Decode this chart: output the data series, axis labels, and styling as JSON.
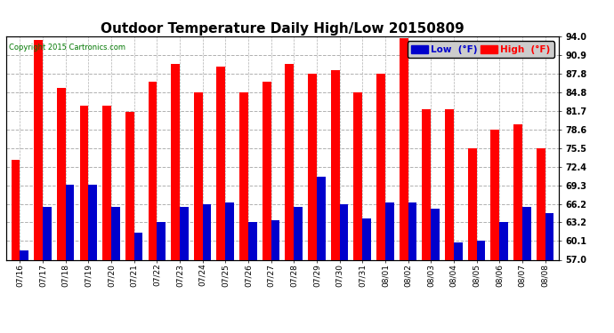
{
  "title": "Outdoor Temperature Daily High/Low 20150809",
  "copyright": "Copyright 2015 Cartronics.com",
  "yticks": [
    57.0,
    60.1,
    63.2,
    66.2,
    69.3,
    72.4,
    75.5,
    78.6,
    81.7,
    84.8,
    87.8,
    90.9,
    94.0
  ],
  "ylim": [
    57.0,
    94.0
  ],
  "dates": [
    "07/16",
    "07/17",
    "07/18",
    "07/19",
    "07/20",
    "07/21",
    "07/22",
    "07/23",
    "07/24",
    "07/25",
    "07/26",
    "07/27",
    "07/28",
    "07/29",
    "07/30",
    "07/31",
    "08/01",
    "08/02",
    "08/03",
    "08/04",
    "08/05",
    "08/06",
    "08/07",
    "08/08"
  ],
  "highs": [
    73.5,
    93.5,
    85.5,
    82.5,
    82.5,
    81.5,
    86.5,
    89.5,
    84.8,
    89.0,
    84.8,
    86.5,
    89.5,
    87.8,
    88.5,
    84.8,
    87.8,
    93.8,
    82.0,
    82.0,
    75.5,
    78.6,
    79.5,
    75.5
  ],
  "lows": [
    58.5,
    65.8,
    69.5,
    69.5,
    65.8,
    61.5,
    63.2,
    65.8,
    66.2,
    66.5,
    63.2,
    63.5,
    65.8,
    70.8,
    66.2,
    63.8,
    66.5,
    66.5,
    65.5,
    59.8,
    60.1,
    63.2,
    65.8,
    64.8
  ],
  "high_color": "#ff0000",
  "low_color": "#0000cc",
  "bg_color": "#ffffff",
  "grid_color": "#b0b0b0",
  "title_fontsize": 11,
  "bar_width": 0.38
}
